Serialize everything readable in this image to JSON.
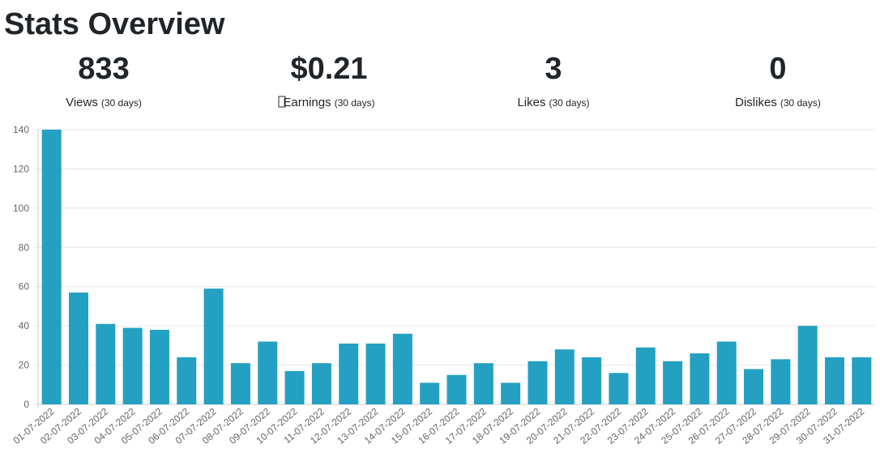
{
  "header": {
    "title": "Stats Overview"
  },
  "stats": [
    {
      "value": "833",
      "label": "Views",
      "period": "(30 days)"
    },
    {
      "value": "$0.21",
      "label": "Earnings",
      "period": "(30 days)"
    },
    {
      "value": "3",
      "label": "Likes",
      "period": "(30 days)"
    },
    {
      "value": "0",
      "label": "Dislikes",
      "period": "(30 days)"
    }
  ],
  "chart_data": {
    "type": "bar",
    "color": "#24a0c2",
    "grid": true,
    "categories": [
      "01-07-2022",
      "02-07-2022",
      "03-07-2022",
      "04-07-2022",
      "05-07-2022",
      "06-07-2022",
      "07-07-2022",
      "08-07-2022",
      "09-07-2022",
      "10-07-2022",
      "11-07-2022",
      "12-07-2022",
      "13-07-2022",
      "14-07-2022",
      "15-07-2022",
      "16-07-2022",
      "17-07-2022",
      "18-07-2022",
      "19-07-2022",
      "20-07-2022",
      "21-07-2022",
      "22-07-2022",
      "23-07-2022",
      "24-07-2022",
      "25-07-2022",
      "26-07-2022",
      "27-07-2022",
      "28-07-2022",
      "29-07-2022",
      "30-07-2022",
      "31-07-2022"
    ],
    "values": [
      140,
      57,
      41,
      39,
      38,
      24,
      59,
      21,
      32,
      17,
      21,
      31,
      31,
      36,
      11,
      15,
      21,
      11,
      22,
      28,
      24,
      16,
      29,
      22,
      26,
      32,
      18,
      23,
      40,
      24,
      24
    ],
    "ylim": [
      0,
      140
    ],
    "yticks": [
      0,
      20,
      40,
      60,
      80,
      100,
      120,
      140
    ]
  }
}
